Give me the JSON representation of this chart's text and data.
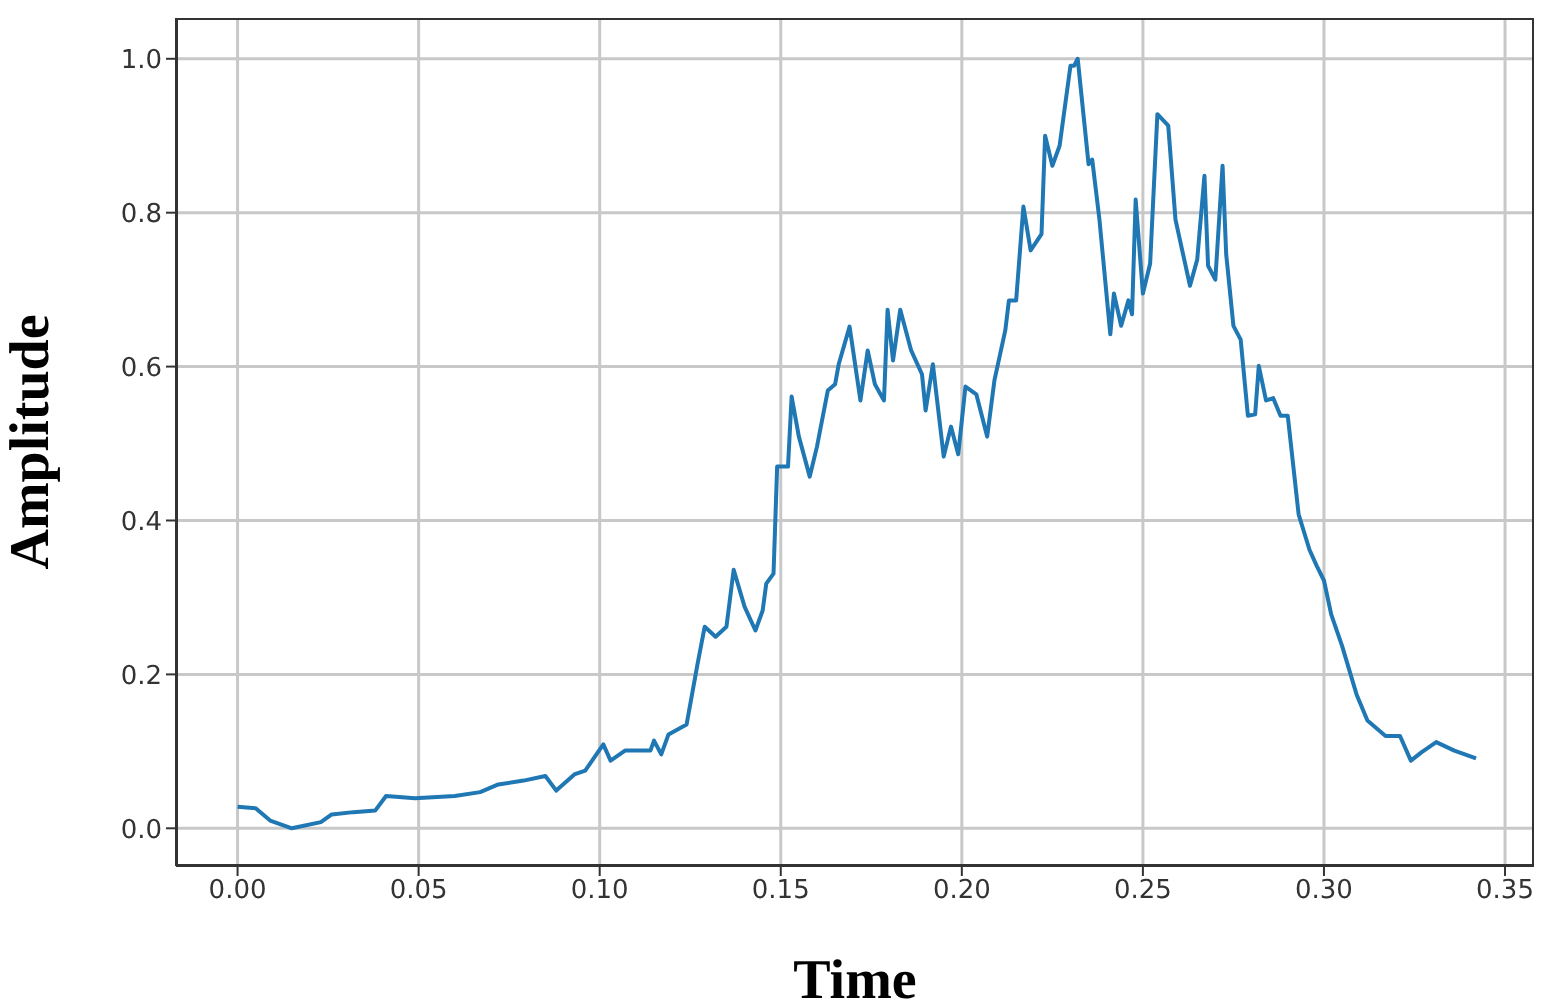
{
  "chart_data": {
    "type": "line",
    "xlabel": "Time",
    "ylabel": "Amplitude",
    "xlim": [
      -0.017,
      0.358
    ],
    "ylim": [
      -0.049,
      1.053
    ],
    "xticks": [
      {
        "value": 0,
        "label": "0.00"
      },
      {
        "value": 0.05,
        "label": "0.05"
      },
      {
        "value": 0.1,
        "label": "0.10"
      },
      {
        "value": 0.15,
        "label": "0.15"
      },
      {
        "value": 0.2,
        "label": "0.20"
      },
      {
        "value": 0.25,
        "label": "0.25"
      },
      {
        "value": 0.3,
        "label": "0.30"
      },
      {
        "value": 0.35,
        "label": "0.35"
      }
    ],
    "yticks": [
      {
        "value": 0,
        "label": "0.0"
      },
      {
        "value": 0.2,
        "label": "0.2"
      },
      {
        "value": 0.4,
        "label": "0.4"
      },
      {
        "value": 0.6,
        "label": "0.6"
      },
      {
        "value": 0.8,
        "label": "0.8"
      },
      {
        "value": 1,
        "label": "1.0"
      }
    ],
    "grid": true,
    "marker": "none",
    "line_style": "solid",
    "series": [
      {
        "color": "#1f77b4",
        "x": [
          0,
          0.005,
          0.009,
          0.015,
          0.023,
          0.026,
          0.032,
          0.038,
          0.041,
          0.049,
          0.06,
          0.067,
          0.072,
          0.079,
          0.085,
          0.088,
          0.093,
          0.096,
          0.101,
          0.103,
          0.107,
          0.114,
          0.115,
          0.117,
          0.119,
          0.124,
          0.127,
          0.129,
          0.132,
          0.135,
          0.137,
          0.14,
          0.143,
          0.145,
          0.146,
          0.148,
          0.149,
          0.152,
          0.153,
          0.155,
          0.158,
          0.16,
          0.163,
          0.165,
          0.166,
          0.169,
          0.172,
          0.174,
          0.176,
          0.1785,
          0.1795,
          0.181,
          0.183,
          0.186,
          0.189,
          0.19,
          0.192,
          0.195,
          0.197,
          0.199,
          0.201,
          0.204,
          0.207,
          0.209,
          0.212,
          0.213,
          0.215,
          0.217,
          0.219,
          0.222,
          0.223,
          0.225,
          0.227,
          0.23,
          0.231,
          0.232,
          0.235,
          0.236,
          0.238,
          0.241,
          0.242,
          0.244,
          0.246,
          0.247,
          0.248,
          0.25,
          0.252,
          0.254,
          0.257,
          0.259,
          0.263,
          0.265,
          0.267,
          0.268,
          0.27,
          0.272,
          0.273,
          0.275,
          0.277,
          0.279,
          0.281,
          0.282,
          0.284,
          0.286,
          0.288,
          0.29,
          0.293,
          0.296,
          0.298,
          0.3,
          0.302,
          0.305,
          0.309,
          0.312,
          0.317,
          0.321,
          0.324,
          0.327,
          0.331,
          0.336,
          0.342
        ],
        "values": [
          0.028,
          0.026,
          0.01,
          0.0,
          0.008,
          0.018,
          0.021,
          0.023,
          0.042,
          0.039,
          0.042,
          0.047,
          0.057,
          0.062,
          0.068,
          0.049,
          0.07,
          0.075,
          0.109,
          0.088,
          0.101,
          0.101,
          0.114,
          0.096,
          0.122,
          0.135,
          0.213,
          0.262,
          0.249,
          0.262,
          0.336,
          0.288,
          0.257,
          0.283,
          0.318,
          0.331,
          0.47,
          0.47,
          0.561,
          0.509,
          0.457,
          0.496,
          0.569,
          0.577,
          0.603,
          0.652,
          0.556,
          0.621,
          0.577,
          0.556,
          0.674,
          0.608,
          0.674,
          0.621,
          0.59,
          0.543,
          0.603,
          0.483,
          0.522,
          0.486,
          0.574,
          0.564,
          0.509,
          0.582,
          0.647,
          0.686,
          0.686,
          0.808,
          0.751,
          0.772,
          0.9,
          0.861,
          0.887,
          0.991,
          0.991,
          1.0,
          0.863,
          0.869,
          0.791,
          0.642,
          0.695,
          0.653,
          0.686,
          0.668,
          0.817,
          0.695,
          0.734,
          0.928,
          0.913,
          0.791,
          0.705,
          0.739,
          0.848,
          0.731,
          0.713,
          0.861,
          0.746,
          0.653,
          0.635,
          0.536,
          0.538,
          0.601,
          0.556,
          0.559,
          0.536,
          0.536,
          0.408,
          0.362,
          0.341,
          0.322,
          0.278,
          0.237,
          0.174,
          0.14,
          0.12,
          0.12,
          0.088,
          0.099,
          0.112,
          0.101,
          0.091
        ]
      }
    ]
  }
}
